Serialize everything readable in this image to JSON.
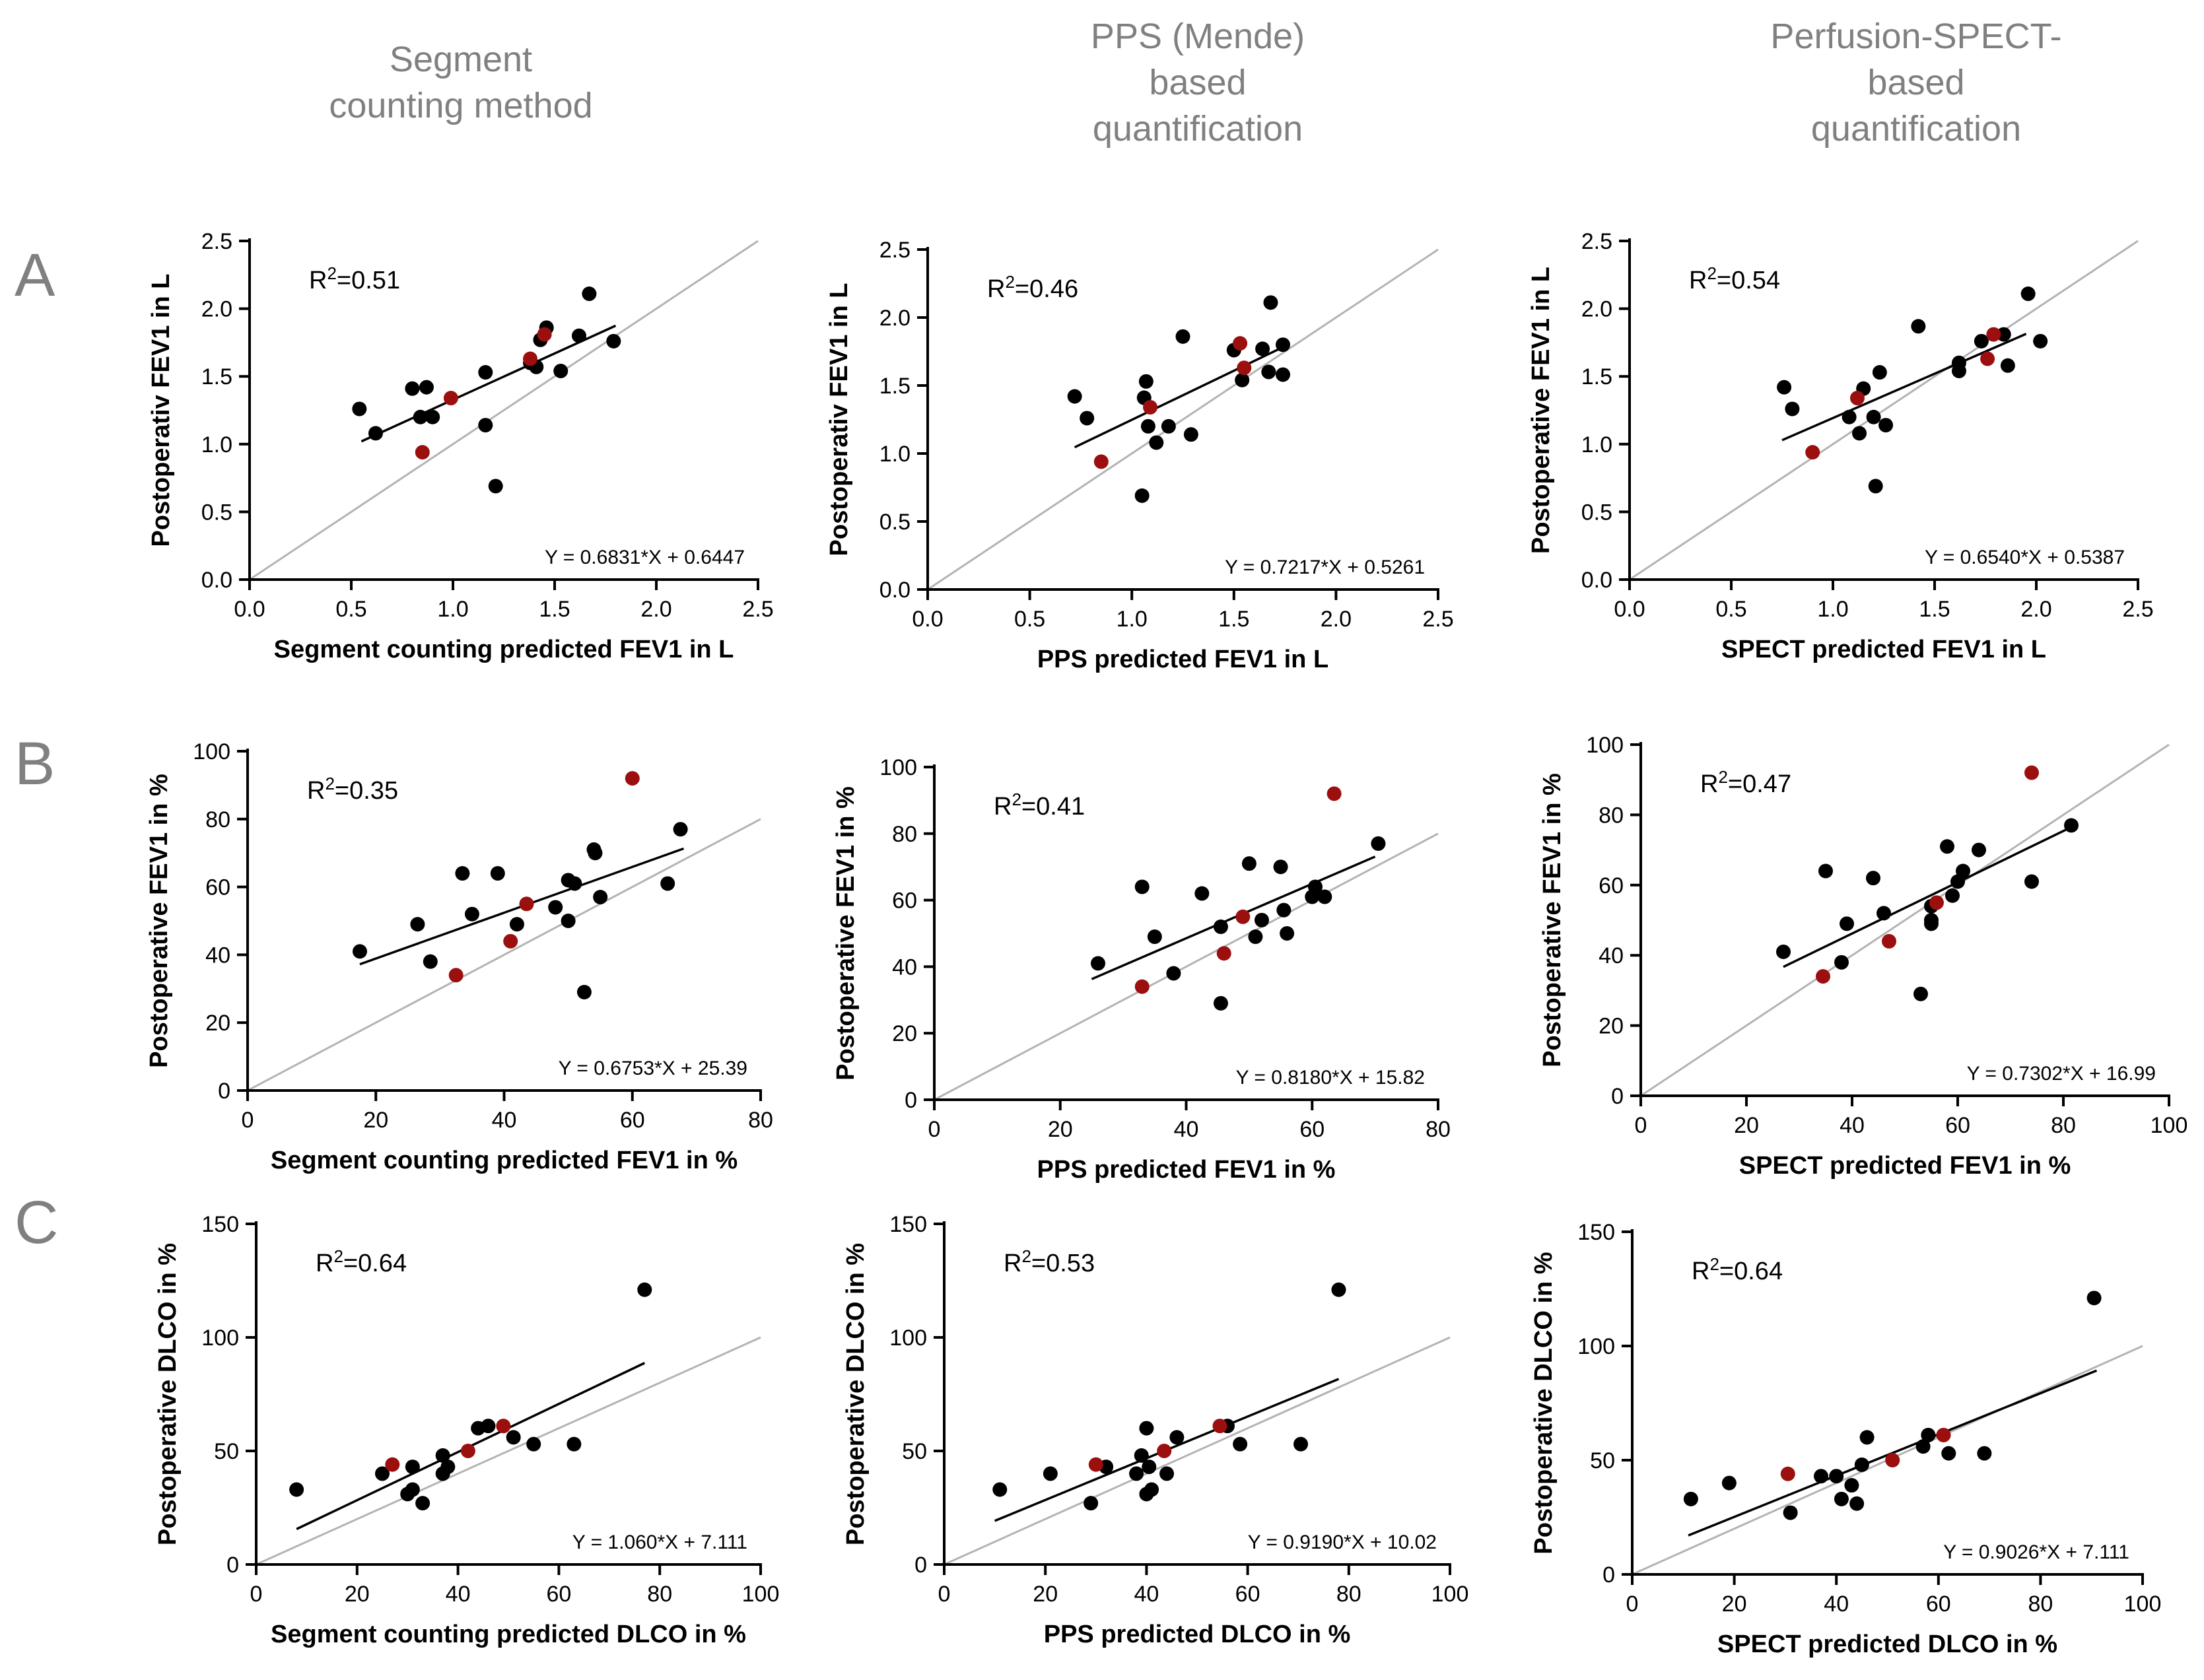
{
  "column_headers": [
    [
      "Segment",
      "counting method"
    ],
    [
      "PPS (Mende)",
      "based",
      "quantification"
    ],
    [
      "Perfusion-SPECT-",
      "based",
      "quantification"
    ]
  ],
  "row_labels": [
    "A",
    "B",
    "C"
  ],
  "colors": {
    "black_point": "#000000",
    "red_point": "#9b0f0f",
    "identity_line": "#b3b3b3",
    "fit_line": "#000000",
    "header_text": "#808080"
  },
  "chart_data": [
    {
      "id": "A1",
      "type": "scatter",
      "xlabel": "Segment counting predicted FEV1 in L",
      "ylabel": "Postoperativ FEV1 in L",
      "xlim": [
        0,
        2.5
      ],
      "ylim": [
        0,
        2.5
      ],
      "xticks": [
        "0.0",
        "0.5",
        "1.0",
        "1.5",
        "2.0",
        "2.5"
      ],
      "yticks": [
        "0.0",
        "0.5",
        "1.0",
        "1.5",
        "2.0",
        "2.5"
      ],
      "r2_prefix": "R",
      "r2_exp": "2",
      "r2_value": "=0.51",
      "equation": "Y = 0.6831*X + 0.6447",
      "fit_range": [
        0.55,
        1.8
      ],
      "slope": 0.6831,
      "intercept": 0.6447,
      "points_black": [
        [
          0.54,
          1.26
        ],
        [
          0.62,
          1.08
        ],
        [
          0.8,
          1.41
        ],
        [
          0.84,
          1.2
        ],
        [
          0.87,
          1.42
        ],
        [
          0.9,
          1.2
        ],
        [
          1.16,
          1.53
        ],
        [
          1.16,
          1.14
        ],
        [
          1.21,
          0.69
        ],
        [
          1.38,
          1.6
        ],
        [
          1.41,
          1.57
        ],
        [
          1.43,
          1.77
        ],
        [
          1.46,
          1.86
        ],
        [
          1.53,
          1.54
        ],
        [
          1.62,
          1.8
        ],
        [
          1.67,
          2.11
        ],
        [
          1.79,
          1.76
        ]
      ],
      "points_red": [
        [
          0.85,
          0.94
        ],
        [
          0.99,
          1.34
        ],
        [
          1.38,
          1.63
        ],
        [
          1.45,
          1.81
        ]
      ]
    },
    {
      "id": "A2",
      "type": "scatter",
      "xlabel": "PPS predicted FEV1 in L",
      "ylabel": "Postoperativ FEV1 in L",
      "xlim": [
        0,
        2.5
      ],
      "ylim": [
        0,
        2.5
      ],
      "xticks": [
        "0.0",
        "0.5",
        "1.0",
        "1.5",
        "2.0",
        "2.5"
      ],
      "yticks": [
        "0.0",
        "0.5",
        "1.0",
        "1.5",
        "2.0",
        "2.5"
      ],
      "r2_prefix": "R",
      "r2_exp": "2",
      "r2_value": "=0.46",
      "equation": "Y = 0.7217*X + 0.5261",
      "fit_range": [
        0.72,
        1.75
      ],
      "slope": 0.7217,
      "intercept": 0.5261,
      "points_black": [
        [
          0.72,
          1.42
        ],
        [
          0.78,
          1.26
        ],
        [
          1.05,
          0.69
        ],
        [
          1.06,
          1.41
        ],
        [
          1.07,
          1.53
        ],
        [
          1.08,
          1.2
        ],
        [
          1.12,
          1.08
        ],
        [
          1.18,
          1.2
        ],
        [
          1.25,
          1.86
        ],
        [
          1.29,
          1.14
        ],
        [
          1.5,
          1.76
        ],
        [
          1.54,
          1.54
        ],
        [
          1.64,
          1.77
        ],
        [
          1.67,
          1.6
        ],
        [
          1.68,
          2.11
        ],
        [
          1.74,
          1.8
        ],
        [
          1.74,
          1.58
        ]
      ],
      "points_red": [
        [
          0.85,
          0.94
        ],
        [
          1.09,
          1.34
        ],
        [
          1.53,
          1.81
        ],
        [
          1.55,
          1.63
        ]
      ]
    },
    {
      "id": "A3",
      "type": "scatter",
      "xlabel": "SPECT predicted FEV1 in L",
      "ylabel": "Postoperative FEV1 in L",
      "xlim": [
        0,
        2.5
      ],
      "ylim": [
        0,
        2.5
      ],
      "xticks": [
        "0.0",
        "0.5",
        "1.0",
        "1.5",
        "2.0",
        "2.5"
      ],
      "yticks": [
        "0.0",
        "0.5",
        "1.0",
        "1.5",
        "2.0",
        "2.5"
      ],
      "r2_prefix": "R",
      "r2_exp": "2",
      "r2_value": "=0.54",
      "equation": "Y = 0.6540*X + 0.5387",
      "fit_range": [
        0.75,
        1.95
      ],
      "slope": 0.654,
      "intercept": 0.5387,
      "points_black": [
        [
          0.76,
          1.42
        ],
        [
          0.8,
          1.26
        ],
        [
          1.08,
          1.2
        ],
        [
          1.13,
          1.08
        ],
        [
          1.15,
          1.41
        ],
        [
          1.2,
          1.2
        ],
        [
          1.21,
          0.69
        ],
        [
          1.23,
          1.53
        ],
        [
          1.26,
          1.14
        ],
        [
          1.42,
          1.87
        ],
        [
          1.62,
          1.54
        ],
        [
          1.62,
          1.6
        ],
        [
          1.73,
          1.76
        ],
        [
          1.84,
          1.81
        ],
        [
          1.86,
          1.58
        ],
        [
          1.96,
          2.11
        ],
        [
          2.02,
          1.76
        ]
      ],
      "points_red": [
        [
          0.9,
          0.94
        ],
        [
          1.12,
          1.34
        ],
        [
          1.76,
          1.63
        ],
        [
          1.79,
          1.81
        ]
      ]
    },
    {
      "id": "B1",
      "type": "scatter",
      "xlabel": "Segment counting predicted FEV1 in %",
      "ylabel": "Postoperative FEV1 in %",
      "xlim": [
        0,
        80
      ],
      "ylim": [
        0,
        100
      ],
      "xticks": [
        "0",
        "20",
        "40",
        "60",
        "80"
      ],
      "yticks": [
        "0",
        "20",
        "40",
        "60",
        "80",
        "100"
      ],
      "r2_prefix": "R",
      "r2_exp": "2",
      "r2_value": "=0.35",
      "equation": "Y = 0.6753*X + 25.39",
      "fit_range": [
        17.5,
        68
      ],
      "slope": 0.6753,
      "intercept": 25.39,
      "points_black": [
        [
          17.5,
          41
        ],
        [
          26.5,
          49
        ],
        [
          28.5,
          38
        ],
        [
          33.5,
          64
        ],
        [
          35,
          52
        ],
        [
          39,
          64
        ],
        [
          42,
          49
        ],
        [
          48,
          54
        ],
        [
          50,
          62
        ],
        [
          50,
          50
        ],
        [
          51,
          61
        ],
        [
          52.5,
          29
        ],
        [
          54,
          71
        ],
        [
          54.2,
          70
        ],
        [
          55,
          57
        ],
        [
          65.5,
          61
        ],
        [
          67.5,
          77
        ]
      ],
      "points_red": [
        [
          32.5,
          34
        ],
        [
          41,
          44
        ],
        [
          43.5,
          55
        ],
        [
          60,
          92
        ]
      ]
    },
    {
      "id": "B2",
      "type": "scatter",
      "xlabel": "PPS predicted FEV1 in %",
      "ylabel": "Postoperative FEV1 in %",
      "xlim": [
        0,
        80
      ],
      "ylim": [
        0,
        100
      ],
      "xticks": [
        "0",
        "20",
        "40",
        "60",
        "80"
      ],
      "yticks": [
        "0",
        "20",
        "40",
        "60",
        "80",
        "100"
      ],
      "r2_prefix": "R",
      "r2_exp": "2",
      "r2_value": "=0.41",
      "equation": "Y = 0.8180*X + 15.82",
      "fit_range": [
        25,
        70
      ],
      "slope": 0.818,
      "intercept": 15.82,
      "points_black": [
        [
          26,
          41
        ],
        [
          33,
          64
        ],
        [
          35,
          49
        ],
        [
          38,
          38
        ],
        [
          42.5,
          62
        ],
        [
          45.5,
          52
        ],
        [
          45.5,
          29
        ],
        [
          50,
          71
        ],
        [
          51,
          49
        ],
        [
          52,
          54
        ],
        [
          55,
          70
        ],
        [
          55.5,
          57
        ],
        [
          56,
          50
        ],
        [
          60,
          61
        ],
        [
          60.5,
          64
        ],
        [
          62,
          61
        ],
        [
          70.5,
          77
        ]
      ],
      "points_red": [
        [
          33,
          34
        ],
        [
          46,
          44
        ],
        [
          49,
          55
        ],
        [
          63.5,
          92
        ]
      ]
    },
    {
      "id": "B3",
      "type": "scatter",
      "xlabel": "SPECT predicted FEV1 in %",
      "ylabel": "Postoperative FEV1 in %",
      "xlim": [
        0,
        100
      ],
      "ylim": [
        0,
        100
      ],
      "xticks": [
        "0",
        "20",
        "40",
        "60",
        "80",
        "100"
      ],
      "yticks": [
        "0",
        "20",
        "40",
        "60",
        "80",
        "100"
      ],
      "r2_prefix": "R",
      "r2_exp": "2",
      "r2_value": "=0.47",
      "equation": "Y = 0.7302*X + 16.99",
      "fit_range": [
        27,
        82
      ],
      "slope": 0.7302,
      "intercept": 16.99,
      "points_black": [
        [
          27,
          41
        ],
        [
          35,
          64
        ],
        [
          38,
          38
        ],
        [
          39,
          49
        ],
        [
          44,
          62
        ],
        [
          46,
          52
        ],
        [
          53,
          29
        ],
        [
          55,
          49
        ],
        [
          55,
          50
        ],
        [
          55,
          54
        ],
        [
          58,
          71
        ],
        [
          59,
          57
        ],
        [
          60,
          61
        ],
        [
          61,
          64
        ],
        [
          64,
          70
        ],
        [
          74,
          61
        ],
        [
          81.5,
          77
        ]
      ],
      "points_red": [
        [
          34.5,
          34
        ],
        [
          47,
          44
        ],
        [
          56,
          55
        ],
        [
          74,
          92
        ]
      ]
    },
    {
      "id": "C1",
      "type": "scatter",
      "xlabel": "Segment counting predicted DLCO in %",
      "ylabel": "Postoperative DLCO in %",
      "xlim": [
        0,
        100
      ],
      "ylim": [
        0,
        150
      ],
      "xticks": [
        "0",
        "20",
        "40",
        "60",
        "80",
        "100"
      ],
      "yticks": [
        "0",
        "50",
        "100",
        "150"
      ],
      "r2_prefix": "R",
      "r2_exp": "2",
      "r2_value": "=0.64",
      "equation": "Y = 1.060*X + 7.111",
      "fit_range": [
        8,
        77
      ],
      "slope": 1.06,
      "intercept": 7.111,
      "points_black": [
        [
          8,
          33
        ],
        [
          25,
          40
        ],
        [
          30,
          31
        ],
        [
          31,
          33
        ],
        [
          31,
          43
        ],
        [
          33,
          27
        ],
        [
          37,
          40
        ],
        [
          37,
          48
        ],
        [
          38,
          43
        ],
        [
          44,
          60
        ],
        [
          46,
          61
        ],
        [
          51,
          56
        ],
        [
          55,
          53
        ],
        [
          63,
          53
        ],
        [
          77,
          121
        ]
      ],
      "points_red": [
        [
          27,
          44
        ],
        [
          42,
          50
        ],
        [
          49,
          61
        ]
      ]
    },
    {
      "id": "C2",
      "type": "scatter",
      "xlabel": "PPS predicted DLCO in %",
      "ylabel": "Postoperative DLCO in %",
      "xlim": [
        0,
        100
      ],
      "ylim": [
        0,
        150
      ],
      "xticks": [
        "0",
        "20",
        "40",
        "60",
        "80",
        "100"
      ],
      "yticks": [
        "0",
        "50",
        "100",
        "150"
      ],
      "r2_prefix": "R",
      "r2_exp": "2",
      "r2_value": "=0.53",
      "equation": "Y = 0.9190*X + 10.02",
      "fit_range": [
        10,
        78
      ],
      "slope": 0.919,
      "intercept": 10.02,
      "points_black": [
        [
          11,
          33
        ],
        [
          21,
          40
        ],
        [
          29,
          27
        ],
        [
          32,
          43
        ],
        [
          38,
          40
        ],
        [
          39,
          48
        ],
        [
          40,
          31
        ],
        [
          40,
          60
        ],
        [
          40.5,
          43
        ],
        [
          41,
          33
        ],
        [
          44,
          40
        ],
        [
          46,
          56
        ],
        [
          56,
          61
        ],
        [
          58.5,
          53
        ],
        [
          70.5,
          53
        ],
        [
          78,
          121
        ]
      ],
      "points_red": [
        [
          30,
          44
        ],
        [
          43.5,
          50
        ],
        [
          54.5,
          61
        ]
      ]
    },
    {
      "id": "C3",
      "type": "scatter",
      "xlabel": "SPECT predicted DLCO in %",
      "ylabel": "Postoperative DLCO in %",
      "xlim": [
        0,
        100
      ],
      "ylim": [
        0,
        150
      ],
      "xticks": [
        "0",
        "20",
        "40",
        "60",
        "80",
        "100"
      ],
      "yticks": [
        "0",
        "50",
        "100",
        "150"
      ],
      "r2_prefix": "R",
      "r2_exp": "2",
      "r2_value": "=0.64",
      "equation": "Y = 0.9026*X + 7.111",
      "fit_range": [
        11,
        91
      ],
      "slope": 0.9026,
      "intercept": 7.111,
      "points_black": [
        [
          11.5,
          33
        ],
        [
          19,
          40
        ],
        [
          31,
          27
        ],
        [
          37,
          43
        ],
        [
          40,
          43
        ],
        [
          41,
          33
        ],
        [
          43,
          39
        ],
        [
          44,
          31
        ],
        [
          45,
          48
        ],
        [
          46,
          60
        ],
        [
          57,
          56
        ],
        [
          58,
          61
        ],
        [
          62,
          53
        ],
        [
          69,
          53
        ],
        [
          90.5,
          121
        ]
      ],
      "points_red": [
        [
          30.5,
          44
        ],
        [
          51,
          50
        ],
        [
          61,
          61
        ]
      ]
    }
  ]
}
